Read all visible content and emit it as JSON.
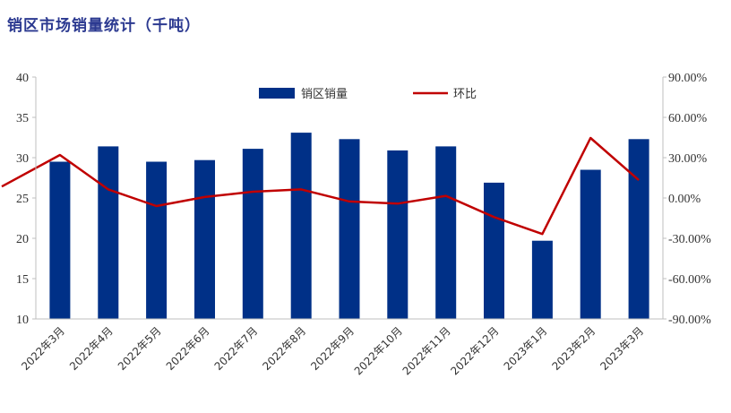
{
  "chart_data": {
    "type": "bar",
    "title": "销区市场销量统计（千吨）",
    "categories": [
      "2022年3月",
      "2022年4月",
      "2022年5月",
      "2022年6月",
      "2022年7月",
      "2022年8月",
      "2022年9月",
      "2022年10月",
      "2022年11月",
      "2022年12月",
      "2023年1月",
      "2023年2月",
      "2023年3月"
    ],
    "series": [
      {
        "name": "销区销量",
        "type": "bar",
        "axis": "left",
        "color": "#003087",
        "values": [
          29.5,
          31.4,
          29.5,
          29.7,
          31.1,
          33.1,
          32.3,
          30.9,
          31.4,
          26.9,
          19.7,
          28.5,
          32.3
        ]
      },
      {
        "name": "环比",
        "type": "line",
        "axis": "right",
        "color": "#c00000",
        "start_value": 8.5,
        "values": [
          32.0,
          6.4,
          -6.0,
          0.7,
          4.7,
          6.4,
          -2.6,
          -4.2,
          1.6,
          -14.2,
          -26.8,
          44.7,
          13.3
        ]
      }
    ],
    "y_left": {
      "ylim": [
        10,
        40
      ],
      "ticks": [
        "10",
        "15",
        "20",
        "25",
        "30",
        "35",
        "40"
      ],
      "tick_values": [
        10,
        15,
        20,
        25,
        30,
        35,
        40
      ]
    },
    "y_right": {
      "ylim": [
        -90,
        90
      ],
      "ticks": [
        "-90.00%",
        "-60.00%",
        "-30.00%",
        "0.00%",
        "30.00%",
        "60.00%",
        "90.00%"
      ],
      "tick_values": [
        -90,
        -60,
        -30,
        0,
        30,
        60,
        90
      ]
    },
    "grid": false,
    "legend_position": "top-center"
  }
}
